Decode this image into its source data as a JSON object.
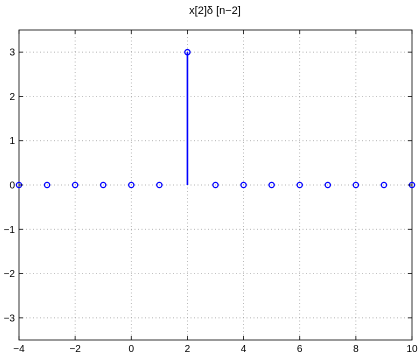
{
  "chart_data": {
    "type": "stem",
    "title": "x[2]δ [n−2]",
    "xlabel": "",
    "ylabel": "",
    "xlim": [
      -4,
      10
    ],
    "ylim": [
      -3.5,
      3.5
    ],
    "xticks": [
      -4,
      -2,
      0,
      2,
      4,
      6,
      8,
      10
    ],
    "xtick_labels": [
      "−4",
      "−2",
      "0",
      "2",
      "4",
      "6",
      "8",
      "10"
    ],
    "yticks": [
      -3,
      -2,
      -1,
      0,
      1,
      2,
      3
    ],
    "ytick_labels": [
      "−3",
      "−2",
      "−1",
      "0",
      "1",
      "2",
      "3"
    ],
    "grid": true,
    "series": [
      {
        "x": [
          -4,
          -3,
          -2,
          -1,
          0,
          1,
          2,
          3,
          4,
          5,
          6,
          7,
          8,
          9,
          10
        ],
        "y": [
          0,
          0,
          0,
          0,
          0,
          0,
          3,
          0,
          0,
          0,
          0,
          0,
          0,
          0,
          0
        ],
        "color": "#0000ff",
        "marker": "circle-open"
      }
    ]
  }
}
